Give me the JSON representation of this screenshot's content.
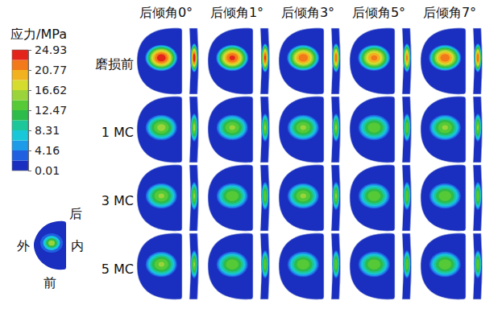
{
  "chart_data": {
    "type": "contour",
    "colorbar": {
      "title": "应力/MPa",
      "range": [
        0.01,
        24.93
      ],
      "ticks": [
        24.93,
        20.77,
        16.62,
        12.47,
        8.31,
        4.16,
        0.01
      ]
    },
    "columns": [
      "后倾角0°",
      "后倾角1°",
      "后倾角3°",
      "后倾角5°",
      "后倾角7°"
    ],
    "rows": [
      "磨损前",
      "1 MC",
      "3 MC",
      "5 MC"
    ],
    "peak_stress": [
      [
        24.5,
        23.5,
        22.5,
        21.5,
        22.5
      ],
      [
        15.5,
        15,
        15,
        14.5,
        15
      ],
      [
        15,
        14.5,
        15,
        14.5,
        14.5
      ],
      [
        15,
        14.5,
        14.5,
        14.5,
        14.5
      ]
    ],
    "orientation_labels": {
      "back": "后",
      "front": "前",
      "lateral": "外",
      "medial": "内"
    }
  }
}
